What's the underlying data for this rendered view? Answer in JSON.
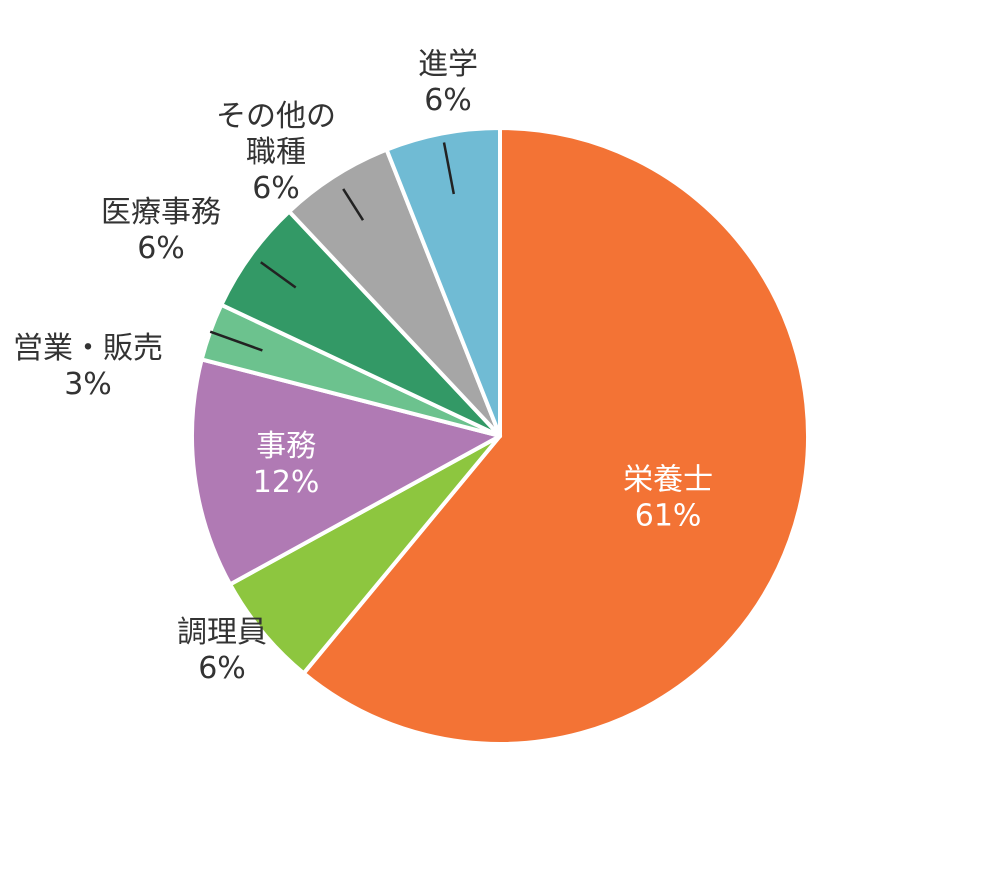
{
  "chart_data": {
    "type": "pie",
    "title": "",
    "start": "top",
    "direction": "clockwise",
    "slices": [
      {
        "label": "栄養士",
        "value": 61,
        "value_text": "61%",
        "color": "#F37335",
        "label_inside": true,
        "label_color": "#ffffff"
      },
      {
        "label": "調理員",
        "value": 6,
        "value_text": "6%",
        "color": "#8DC63F",
        "label_inside": false,
        "label_color": "#333333"
      },
      {
        "label": "事務",
        "value": 12,
        "value_text": "12%",
        "color": "#B07AB4",
        "label_inside": true,
        "label_color": "#ffffff"
      },
      {
        "label": "営業・販売",
        "value": 3,
        "value_text": "3%",
        "color": "#6CC28E",
        "label_inside": false,
        "label_color": "#333333"
      },
      {
        "label": "医療事務",
        "value": 6,
        "value_text": "6%",
        "color": "#339966",
        "label_inside": false,
        "label_color": "#333333"
      },
      {
        "label": "その他の職種",
        "lines": [
          "その他の",
          "職種"
        ],
        "value": 6,
        "value_text": "6%",
        "color": "#A6A6A6",
        "label_inside": false,
        "label_color": "#333333"
      },
      {
        "label": "進学",
        "value": 6,
        "value_text": "6%",
        "color": "#70BBD4",
        "label_inside": false,
        "label_color": "#333333"
      }
    ]
  }
}
